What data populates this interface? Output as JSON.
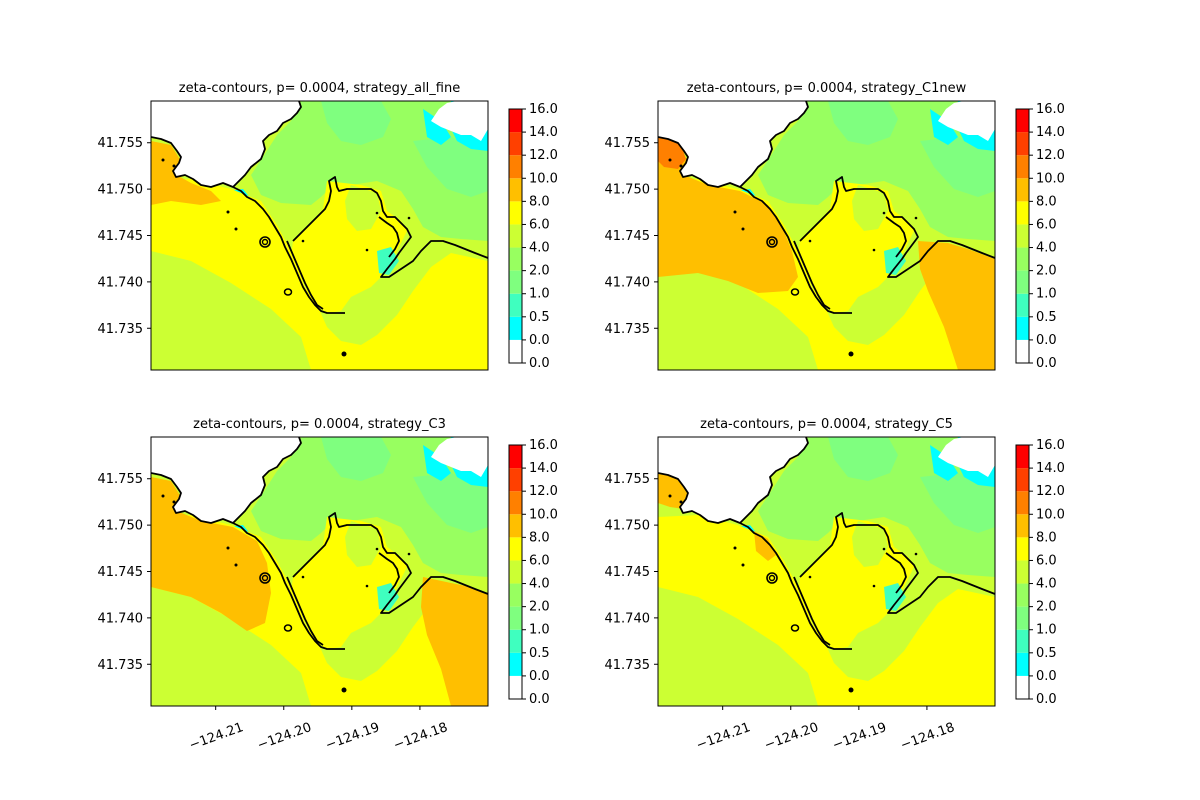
{
  "figure": {
    "colorbar": {
      "levels": [
        "0.0",
        "0.0",
        "0.5",
        "1.0",
        "2.0",
        "4.0",
        "6.0",
        "8.0",
        "10.0",
        "12.0",
        "14.0",
        "16.0"
      ],
      "colors": [
        "#ffffff",
        "#00ffff",
        "#3fffbf",
        "#7fff7f",
        "#98ff60",
        "#ccff33",
        "#ffff00",
        "#ffbf00",
        "#ff8000",
        "#ff4000",
        "#ff0000"
      ]
    },
    "palette": {
      "bg": "#ccff33",
      "yellow": "#ffff00",
      "orange": "#ffbf00",
      "dark_orange": "#ff8000",
      "green": "#98ff60",
      "light_green": "#7fff7f",
      "cyan": "#00ffff",
      "teal": "#3fffbf",
      "land": "#ffffff",
      "coast": "#000000"
    }
  },
  "chart_data": [
    {
      "type": "heatmap",
      "title": "zeta-contours, p= 0.0004, strategy_all_fine",
      "variant": "all_fine",
      "xlim": [
        -124.2195,
        -124.17
      ],
      "ylim": [
        41.7305,
        41.7595
      ],
      "xticks": [],
      "xtick_labels": [],
      "yticks": [
        41.735,
        41.74,
        41.745,
        41.75,
        41.755
      ],
      "ytick_labels": [
        "41.735",
        "41.740",
        "41.745",
        "41.750",
        "41.755"
      ],
      "colorbar_range": [
        0,
        16
      ]
    },
    {
      "type": "heatmap",
      "title": "zeta-contours, p= 0.0004, strategy_C1new",
      "variant": "C1new",
      "xlim": [
        -124.2195,
        -124.17
      ],
      "ylim": [
        41.7305,
        41.7595
      ],
      "xticks": [],
      "xtick_labels": [],
      "yticks": [
        41.735,
        41.74,
        41.745,
        41.75,
        41.755
      ],
      "ytick_labels": [
        "41.735",
        "41.740",
        "41.745",
        "41.750",
        "41.755"
      ],
      "colorbar_range": [
        0,
        16
      ]
    },
    {
      "type": "heatmap",
      "title": "zeta-contours, p= 0.0004, strategy_C3",
      "variant": "C3",
      "xlim": [
        -124.2195,
        -124.17
      ],
      "ylim": [
        41.7305,
        41.7595
      ],
      "xticks": [
        -124.21,
        -124.2,
        -124.19,
        -124.18
      ],
      "xtick_labels": [
        "−124.21",
        "−124.20",
        "−124.19",
        "−124.18"
      ],
      "yticks": [
        41.735,
        41.74,
        41.745,
        41.75,
        41.755
      ],
      "ytick_labels": [
        "41.735",
        "41.740",
        "41.745",
        "41.750",
        "41.755"
      ],
      "colorbar_range": [
        0,
        16
      ]
    },
    {
      "type": "heatmap",
      "title": "zeta-contours, p= 0.0004, strategy_C5",
      "variant": "C5",
      "xlim": [
        -124.2195,
        -124.17
      ],
      "ylim": [
        41.7305,
        41.7595
      ],
      "xticks": [
        -124.21,
        -124.2,
        -124.19,
        -124.18
      ],
      "xtick_labels": [
        "−124.21",
        "−124.20",
        "−124.19",
        "−124.18"
      ],
      "yticks": [
        41.735,
        41.74,
        41.745,
        41.75,
        41.755
      ],
      "ytick_labels": [
        "41.735",
        "41.740",
        "41.745",
        "41.750",
        "41.755"
      ],
      "colorbar_range": [
        0,
        16
      ]
    }
  ]
}
